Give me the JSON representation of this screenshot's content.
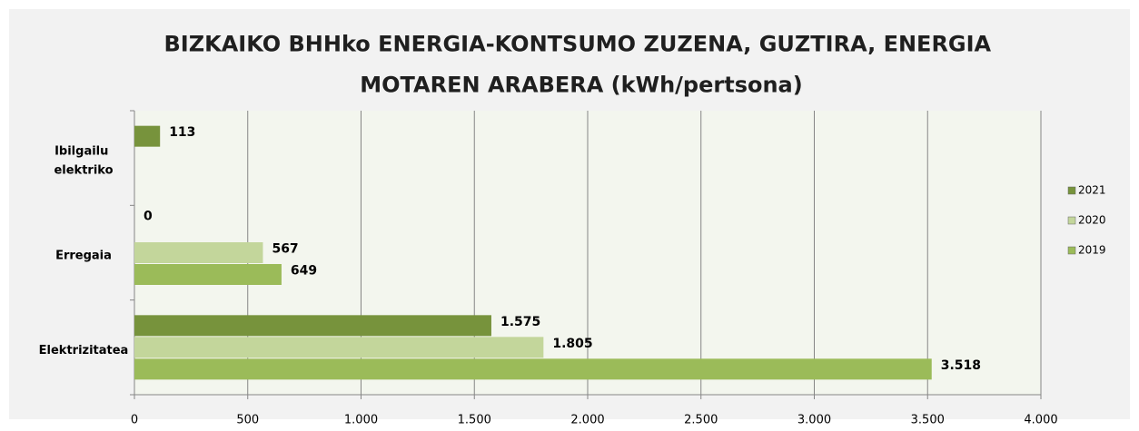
{
  "chart_data": {
    "type": "hbar",
    "title": "BIZKAIKO BHHko ENERGIA-KONTSUMO ZUZENA, GUZTIRA, ENERGIA MOTAREN ARABERA (kWh/pertsona)",
    "categories": [
      "Elektrizitatea",
      "Erregaia",
      "Ibilgailu elektriko"
    ],
    "series": [
      {
        "name": "2021",
        "color": "#77933c",
        "values": [
          1575,
          0,
          113
        ],
        "value_labels": [
          "1.575",
          "0",
          "113"
        ]
      },
      {
        "name": "2020",
        "color": "#c3d69b",
        "values": [
          1805,
          567,
          null
        ],
        "value_labels": [
          "1.805",
          "567",
          null
        ]
      },
      {
        "name": "2019",
        "color": "#9bbb59",
        "values": [
          3518,
          649,
          null
        ],
        "value_labels": [
          "3.518",
          "649",
          null
        ]
      }
    ],
    "xlim": [
      0,
      4000
    ],
    "xticks": [
      0,
      500,
      {
        "value": 1000,
        "label": "1.000"
      },
      {
        "value": 1500,
        "label": "1.500"
      },
      {
        "value": 2000,
        "label": "2.000"
      },
      {
        "value": 2500,
        "label": "2.500"
      },
      {
        "value": 3000,
        "label": "3.000"
      },
      {
        "value": 3500,
        "label": "3.500"
      },
      {
        "value": 4000,
        "label": "4.000"
      }
    ],
    "grid": true,
    "legend": "right"
  }
}
